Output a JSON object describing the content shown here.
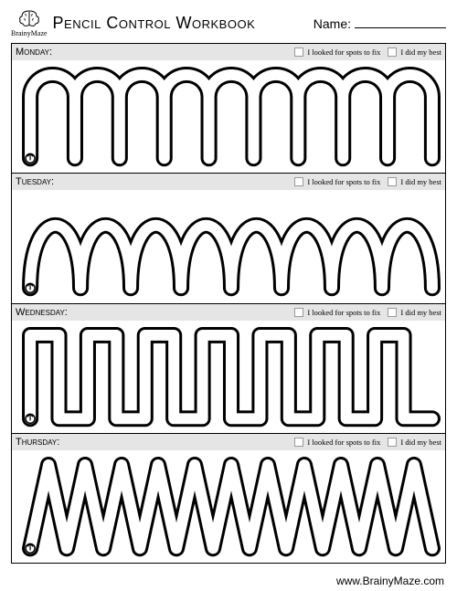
{
  "header": {
    "logo_text": "BrainyMaze",
    "title": "Pencil Control Workbook",
    "name_label": "Name:"
  },
  "checkboxes": {
    "label1": "I looked for spots to fix",
    "label2": "I did my best"
  },
  "panels": [
    {
      "day": "Monday:",
      "pattern": "arches"
    },
    {
      "day": "Tuesday:",
      "pattern": "waves"
    },
    {
      "day": "Wednesday:",
      "pattern": "castle"
    },
    {
      "day": "Thursday:",
      "pattern": "zigzag"
    }
  ],
  "footer": {
    "url": "www.BrainyMaze.com"
  },
  "style": {
    "stroke_color": "#000000",
    "stroke_width_outer": 3,
    "stroke_width_inner": 3,
    "track_gap": 14,
    "bg_color": "#ffffff",
    "header_bg": "#e5e5e5"
  }
}
